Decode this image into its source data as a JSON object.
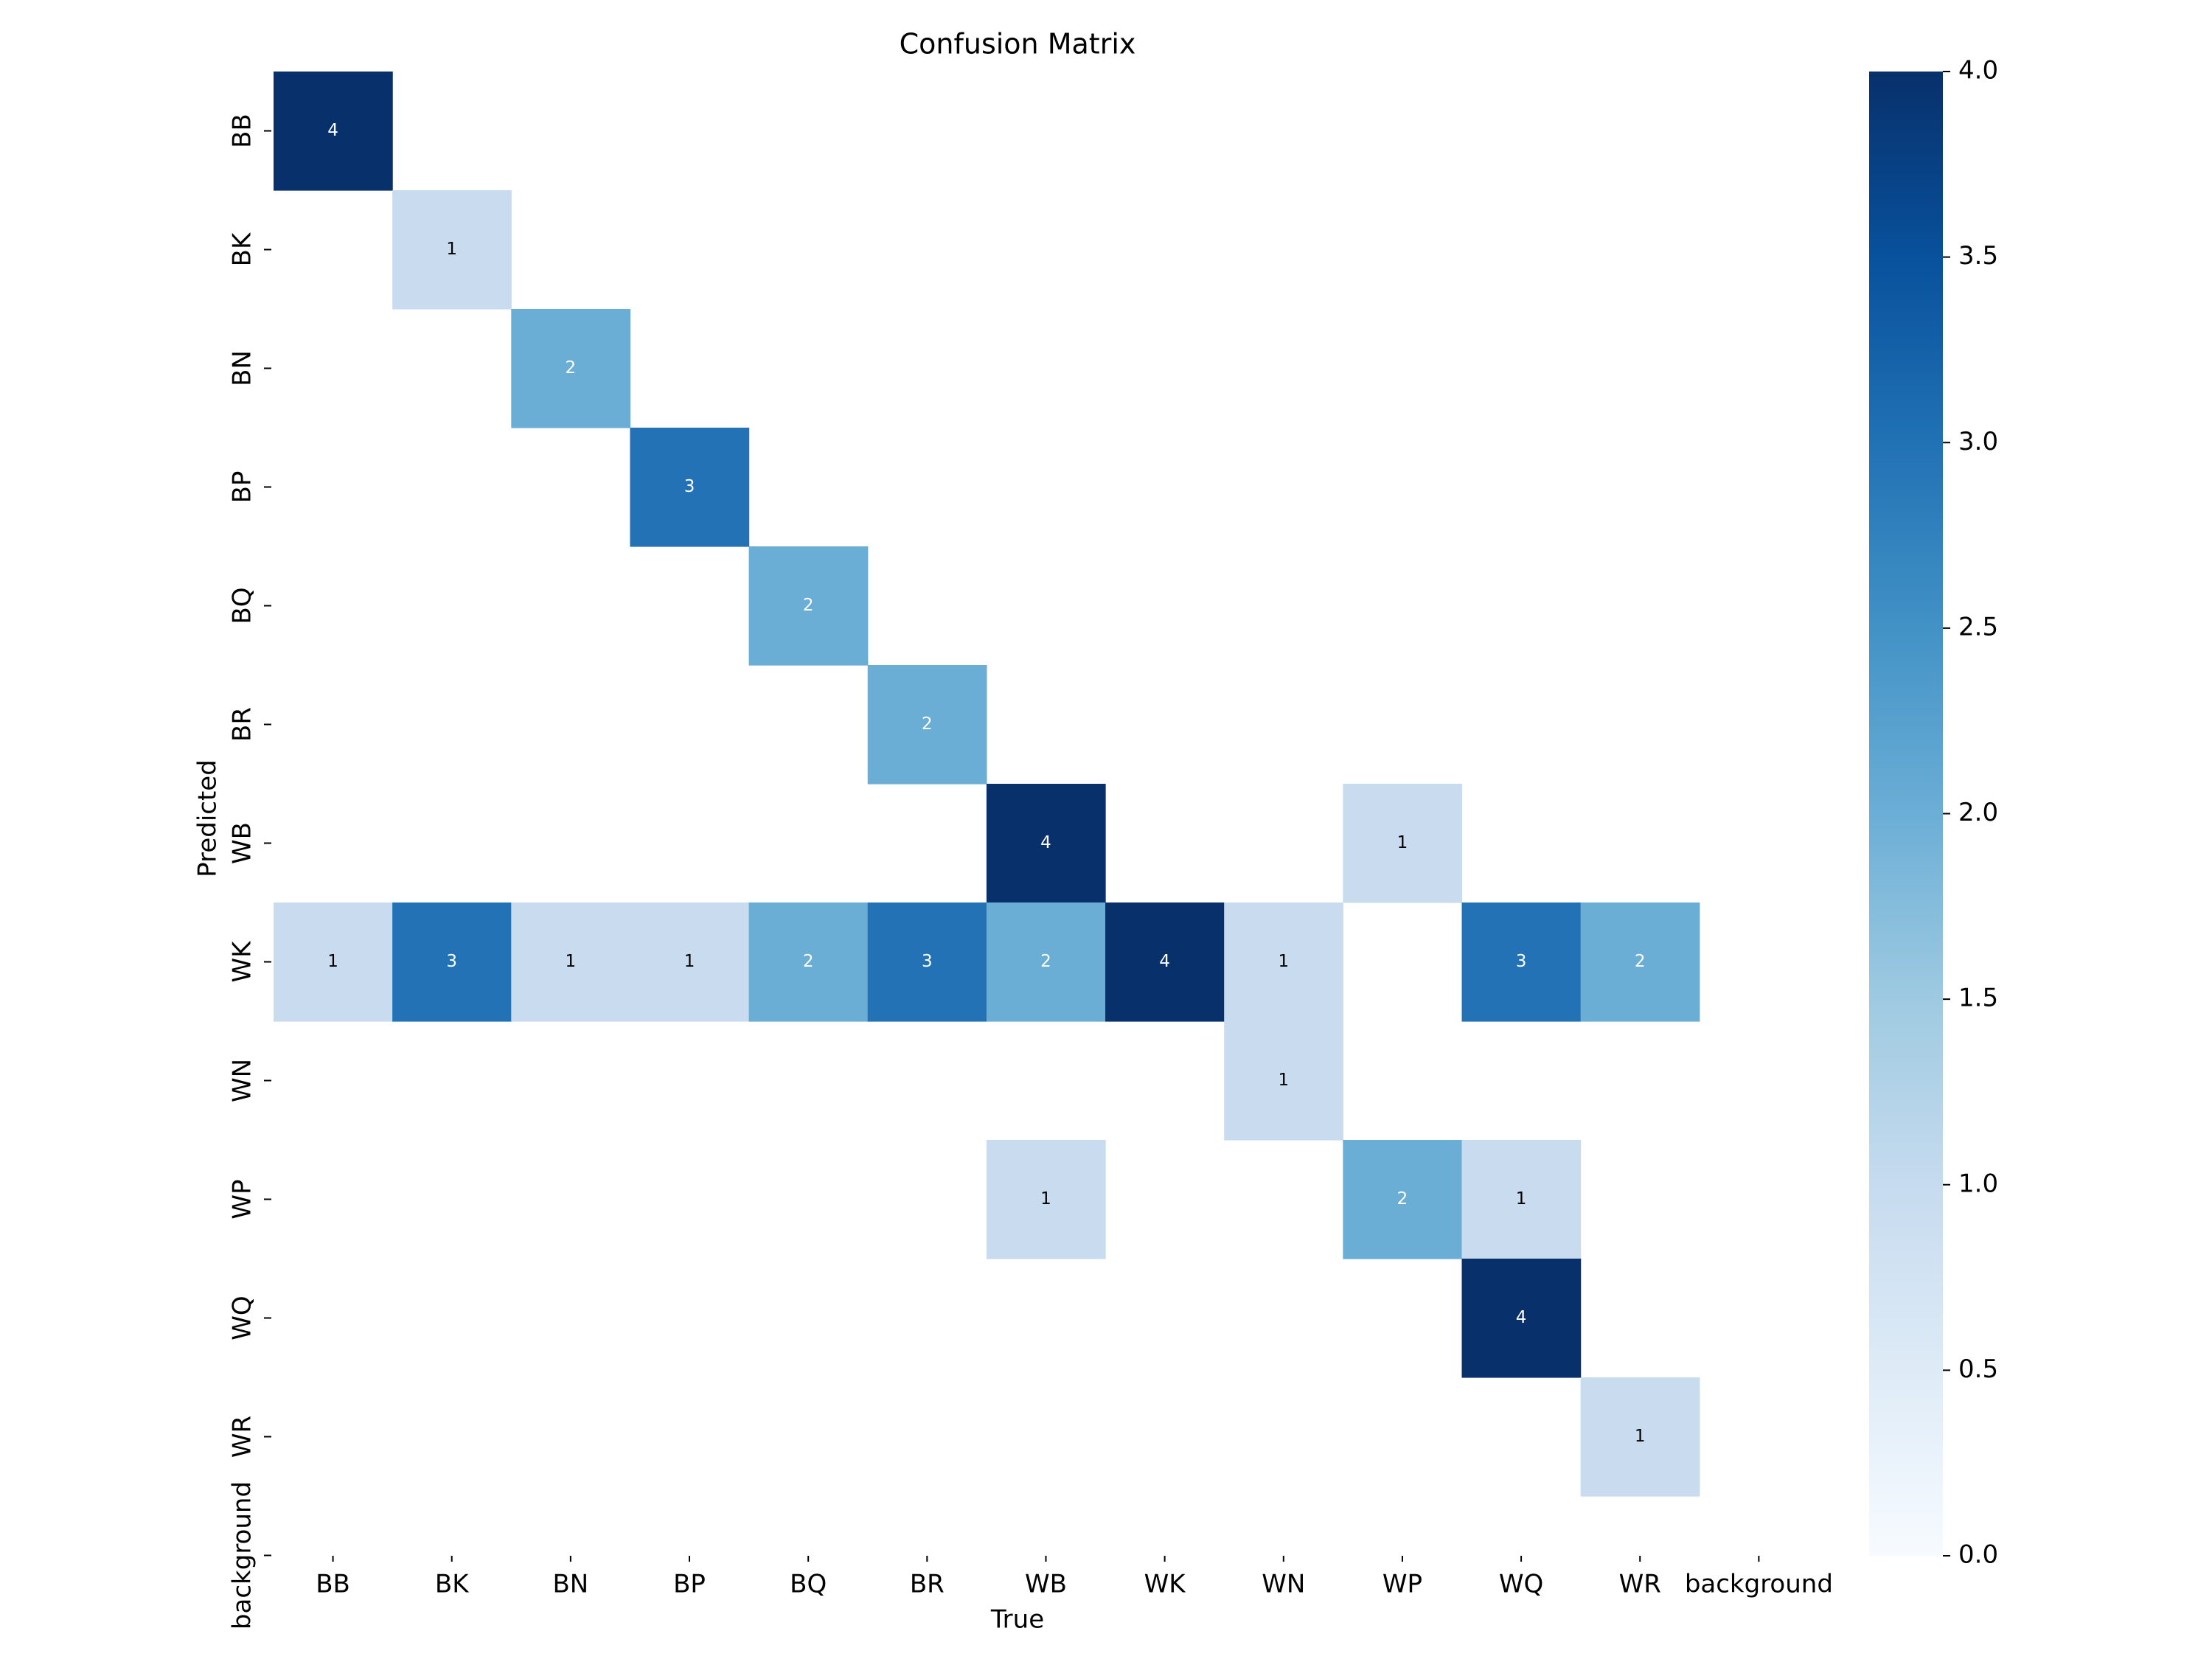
{
  "chart_data": {
    "type": "heatmap",
    "title": "Confusion Matrix",
    "xlabel": "True",
    "ylabel": "Predicted",
    "x_categories": [
      "BB",
      "BK",
      "BN",
      "BP",
      "BQ",
      "BR",
      "WB",
      "WK",
      "WN",
      "WP",
      "WQ",
      "WR",
      "background"
    ],
    "y_categories": [
      "BB",
      "BK",
      "BN",
      "BP",
      "BQ",
      "BR",
      "WB",
      "WK",
      "WN",
      "WP",
      "WQ",
      "WR",
      "background"
    ],
    "cells": [
      {
        "x": "BB",
        "y": "BB",
        "value": 4,
        "label": "4"
      },
      {
        "x": "BK",
        "y": "BK",
        "value": 1,
        "label": "1"
      },
      {
        "x": "BN",
        "y": "BN",
        "value": 2,
        "label": "2"
      },
      {
        "x": "BP",
        "y": "BP",
        "value": 3,
        "label": "3"
      },
      {
        "x": "BQ",
        "y": "BQ",
        "value": 2,
        "label": "2"
      },
      {
        "x": "BR",
        "y": "BR",
        "value": 2,
        "label": "2"
      },
      {
        "x": "WB",
        "y": "WB",
        "value": 4,
        "label": "4"
      },
      {
        "x": "WP",
        "y": "WB",
        "value": 1,
        "label": "1"
      },
      {
        "x": "BB",
        "y": "WK",
        "value": 1,
        "label": "1"
      },
      {
        "x": "BK",
        "y": "WK",
        "value": 3,
        "label": "3"
      },
      {
        "x": "BN",
        "y": "WK",
        "value": 1,
        "label": "1"
      },
      {
        "x": "BP",
        "y": "WK",
        "value": 1,
        "label": "1"
      },
      {
        "x": "BQ",
        "y": "WK",
        "value": 2,
        "label": "2"
      },
      {
        "x": "BR",
        "y": "WK",
        "value": 3,
        "label": "3"
      },
      {
        "x": "WB",
        "y": "WK",
        "value": 2,
        "label": "2"
      },
      {
        "x": "WK",
        "y": "WK",
        "value": 4,
        "label": "4"
      },
      {
        "x": "WN",
        "y": "WK",
        "value": 1,
        "label": "1"
      },
      {
        "x": "WQ",
        "y": "WK",
        "value": 3,
        "label": "3"
      },
      {
        "x": "WR",
        "y": "WK",
        "value": 2,
        "label": "2"
      },
      {
        "x": "WN",
        "y": "WN",
        "value": 1,
        "label": "1"
      },
      {
        "x": "WB",
        "y": "WP",
        "value": 1,
        "label": "1"
      },
      {
        "x": "WP",
        "y": "WP",
        "value": 2,
        "label": "2"
      },
      {
        "x": "WQ",
        "y": "WP",
        "value": 1,
        "label": "1"
      },
      {
        "x": "WQ",
        "y": "WQ",
        "value": 4,
        "label": "4"
      },
      {
        "x": "WR",
        "y": "WR",
        "value": 1,
        "label": "1"
      }
    ],
    "colorbar": {
      "range": [
        0,
        4
      ],
      "ticks": [
        0,
        0.5,
        1,
        1.5,
        2,
        2.5,
        3,
        3.5,
        4
      ],
      "tick_labels": [
        "0.0",
        "0.5",
        "1.0",
        "1.5",
        "2.0",
        "2.5",
        "3.0",
        "3.5",
        "4.0"
      ]
    },
    "colormap": "Blues",
    "colors": {
      "1": "#c9dcef",
      "2": "#6aadd5",
      "3": "#2272b5",
      "4": "#08306b"
    },
    "grid": false
  }
}
